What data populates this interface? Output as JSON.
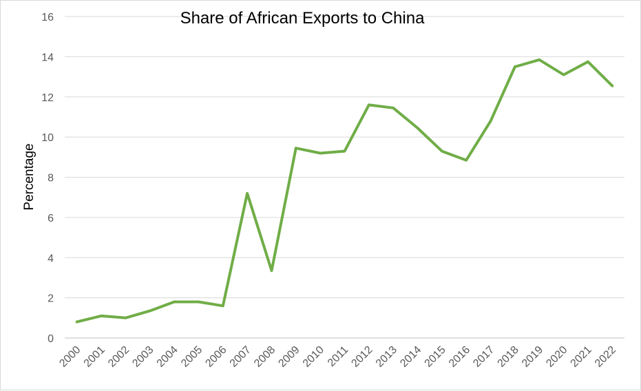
{
  "chart_data": {
    "type": "line",
    "title": "Share of African Exports to China",
    "xlabel": "",
    "ylabel": "Percentage",
    "ylim": [
      0,
      16
    ],
    "yticks": [
      0,
      2,
      4,
      6,
      8,
      10,
      12,
      14,
      16
    ],
    "grid": true,
    "legend": "none",
    "categories": [
      "2000",
      "2001",
      "2002",
      "2003",
      "2004",
      "2005",
      "2006",
      "2007",
      "2008",
      "2009",
      "2010",
      "2011",
      "2012",
      "2013",
      "2014",
      "2015",
      "2016",
      "2017",
      "2018",
      "2019",
      "2020",
      "2021",
      "2022"
    ],
    "series": [
      {
        "color": "#70ad47",
        "values": [
          0.8,
          1.1,
          1.0,
          1.35,
          1.8,
          1.8,
          1.6,
          7.2,
          3.35,
          9.45,
          9.2,
          9.3,
          11.6,
          11.45,
          10.45,
          9.3,
          8.85,
          10.8,
          13.5,
          13.85,
          13.1,
          13.75,
          12.55
        ]
      }
    ]
  }
}
